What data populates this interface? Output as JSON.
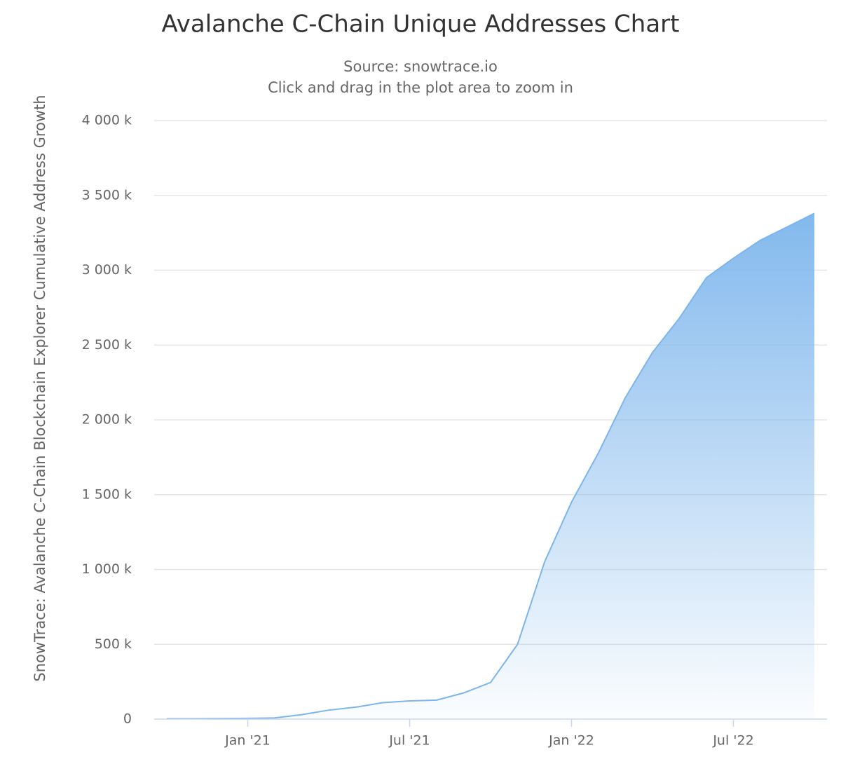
{
  "chart_data": {
    "type": "area",
    "title": "Avalanche C-Chain Unique Addresses Chart",
    "subtitle": "Source: snowtrace.io",
    "subtitle2": "Click and drag in the plot area to zoom in",
    "y_axis_label": "SnowTrace: Avalanche C-Chain Blockchain Explorer Cumulative Address Growth",
    "x": [
      "2020-10",
      "2020-11",
      "2020-12",
      "2021-01",
      "2021-02",
      "2021-03",
      "2021-04",
      "2021-05",
      "2021-06",
      "2021-07",
      "2021-08",
      "2021-09",
      "2021-10",
      "2021-11",
      "2021-12",
      "2022-01",
      "2022-02",
      "2022-03",
      "2022-04",
      "2022-05",
      "2022-06",
      "2022-07",
      "2022-08",
      "2022-09",
      "2022-10"
    ],
    "values": [
      3000,
      3000,
      4000,
      5000,
      8000,
      30000,
      60000,
      80000,
      110000,
      122000,
      127000,
      175000,
      245000,
      500000,
      1050000,
      1450000,
      1780000,
      2150000,
      2450000,
      2680000,
      2950000,
      3080000,
      3200000,
      3290000,
      3380000
    ],
    "color": "#7cb5ec",
    "xlim": [
      "2020-10",
      "2022-10"
    ],
    "xticks": [
      {
        "value": "2021-01",
        "label": "Jan '21"
      },
      {
        "value": "2021-07",
        "label": "Jul '21"
      },
      {
        "value": "2022-01",
        "label": "Jan '22"
      },
      {
        "value": "2022-07",
        "label": "Jul '22"
      }
    ],
    "ylim": [
      0,
      4000000
    ],
    "yticks": [
      {
        "value": 0,
        "label": "0"
      },
      {
        "value": 500000,
        "label": "500 k"
      },
      {
        "value": 1000000,
        "label": "1 000 k"
      },
      {
        "value": 1500000,
        "label": "1 500 k"
      },
      {
        "value": 2000000,
        "label": "2 000 k"
      },
      {
        "value": 2500000,
        "label": "2 500 k"
      },
      {
        "value": 3000000,
        "label": "3 000 k"
      },
      {
        "value": 3500000,
        "label": "3 500 k"
      },
      {
        "value": 4000000,
        "label": "4 000 k"
      }
    ],
    "grid": true
  }
}
